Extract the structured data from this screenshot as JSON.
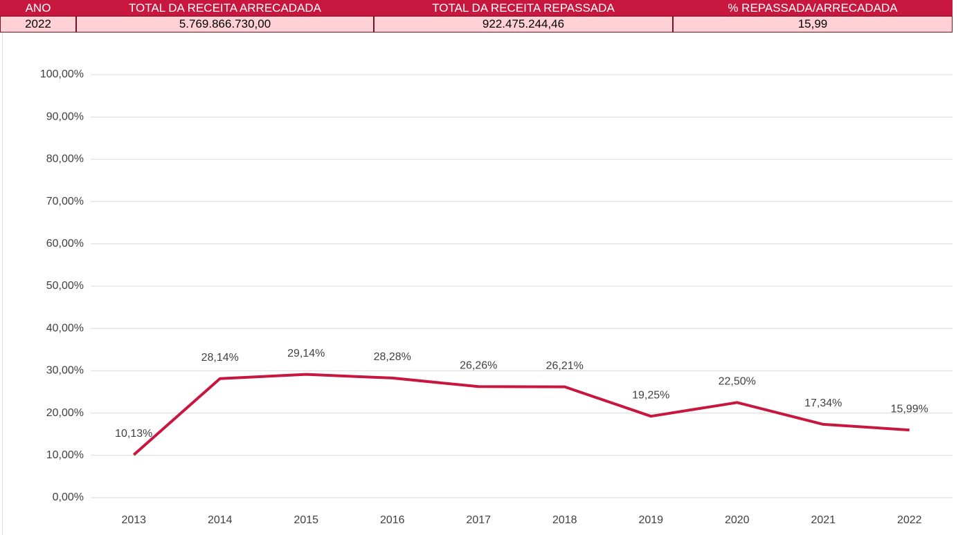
{
  "table": {
    "header": [
      "ANO",
      "TOTAL DA RECEITA ARRECADADA",
      "TOTAL DA RECEITA REPASSADA",
      "% REPASSADA/ARRECADADA"
    ],
    "rows": [
      [
        "2022",
        "5.769.866.730,00",
        "922.475.244,46",
        "15,99"
      ]
    ]
  },
  "chart_data": {
    "type": "line",
    "categories": [
      "2013",
      "2014",
      "2015",
      "2016",
      "2017",
      "2018",
      "2019",
      "2020",
      "2021",
      "2022"
    ],
    "values": [
      10.13,
      28.14,
      29.14,
      28.28,
      26.26,
      26.21,
      19.25,
      22.5,
      17.34,
      15.99
    ],
    "value_labels": [
      "10,13%",
      "28,14%",
      "29,14%",
      "28,28%",
      "26,26%",
      "26,21%",
      "19,25%",
      "22,50%",
      "17,34%",
      "15,99%"
    ],
    "color": "#c8173f",
    "ylim": [
      0,
      100
    ],
    "yticks": [
      {
        "value": 0,
        "label": "0,00%"
      },
      {
        "value": 10,
        "label": "10,00%"
      },
      {
        "value": 20,
        "label": "20,00%"
      },
      {
        "value": 30,
        "label": "30,00%"
      },
      {
        "value": 40,
        "label": "40,00%"
      },
      {
        "value": 50,
        "label": "50,00%"
      },
      {
        "value": 60,
        "label": "60,00%"
      },
      {
        "value": 70,
        "label": "70,00%"
      },
      {
        "value": 80,
        "label": "80,00%"
      },
      {
        "value": 90,
        "label": "90,00%"
      },
      {
        "value": 100,
        "label": "100,00%"
      }
    ],
    "grid": true
  }
}
